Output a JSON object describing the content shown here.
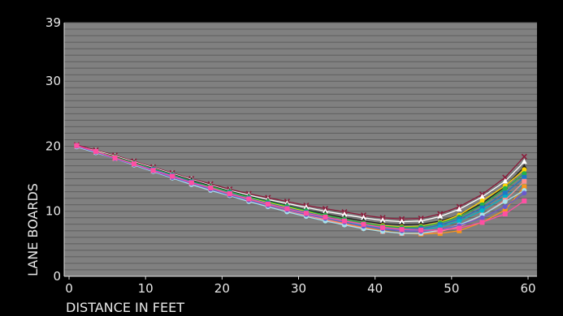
{
  "chart_data": {
    "type": "line",
    "title": "",
    "xlabel": "DISTANCE IN FEET",
    "ylabel": "LANE BOARDS",
    "xlim": [
      0,
      60
    ],
    "ylim": [
      0,
      39
    ],
    "xticks": [
      "0",
      "10",
      "20",
      "30",
      "40",
      "50",
      "60"
    ],
    "yticks": [
      "0",
      "10",
      "20",
      "30",
      "39"
    ],
    "grid": "horizontal, one line per lane board",
    "legend": "none",
    "x": [
      1,
      3.5,
      6,
      8.5,
      11,
      13.5,
      16,
      18.5,
      21,
      23.5,
      26,
      28.5,
      31,
      33.5,
      36,
      38.5,
      41,
      43.5,
      46,
      48.5,
      51,
      54,
      57,
      59.5
    ],
    "series": [
      {
        "color": "#8b1a3a",
        "marker": "x",
        "values": [
          20.2,
          19.4,
          18.6,
          17.7,
          16.8,
          15.9,
          15.0,
          14.2,
          13.4,
          12.7,
          12.1,
          11.5,
          10.9,
          10.4,
          9.9,
          9.4,
          9.0,
          8.8,
          8.9,
          9.6,
          10.7,
          12.6,
          15.2,
          18.4
        ]
      },
      {
        "color": "#ffffff",
        "marker": "triangle",
        "values": [
          20.0,
          19.3,
          18.5,
          17.6,
          16.7,
          15.8,
          14.9,
          14.0,
          13.2,
          12.5,
          11.8,
          11.2,
          10.6,
          10.0,
          9.5,
          9.0,
          8.6,
          8.4,
          8.5,
          9.2,
          10.3,
          12.2,
          14.6,
          17.6
        ]
      },
      {
        "color": "#1f1f1f",
        "marker": "triangle",
        "values": [
          20.0,
          19.2,
          18.4,
          17.5,
          16.6,
          15.7,
          14.8,
          13.9,
          13.1,
          12.3,
          11.6,
          10.9,
          10.2,
          9.6,
          9.0,
          8.5,
          8.1,
          7.9,
          8.0,
          8.5,
          9.4,
          11.2,
          13.8,
          16.8
        ]
      },
      {
        "color": "#ffd400",
        "marker": "circle",
        "values": [
          20.0,
          19.2,
          18.3,
          17.4,
          16.5,
          15.6,
          14.6,
          13.7,
          12.9,
          12.1,
          11.4,
          10.7,
          10.0,
          9.4,
          8.8,
          8.2,
          7.8,
          7.6,
          7.7,
          8.3,
          9.4,
          11.6,
          13.9,
          16.4
        ]
      },
      {
        "color": "#22b14c",
        "marker": "circle",
        "values": [
          20.0,
          19.2,
          18.3,
          17.4,
          16.5,
          15.6,
          14.6,
          13.8,
          13.0,
          12.2,
          11.5,
          10.8,
          10.1,
          9.4,
          8.8,
          8.2,
          7.7,
          7.5,
          7.6,
          8.2,
          9.1,
          11.0,
          13.5,
          15.8
        ]
      },
      {
        "color": "#1e78c8",
        "marker": "square",
        "values": [
          20.0,
          19.1,
          18.2,
          17.3,
          16.4,
          15.5,
          14.5,
          13.6,
          12.8,
          12.0,
          11.2,
          10.5,
          9.8,
          9.1,
          8.5,
          7.9,
          7.4,
          7.2,
          7.3,
          7.9,
          8.8,
          10.5,
          12.8,
          15.2
        ]
      },
      {
        "color": "#00b4c8",
        "marker": "circle",
        "values": [
          20.0,
          19.1,
          18.2,
          17.3,
          16.3,
          15.4,
          14.4,
          13.5,
          12.7,
          11.9,
          11.1,
          10.4,
          9.7,
          9.0,
          8.4,
          7.8,
          7.3,
          7.0,
          7.1,
          7.6,
          8.5,
          10.1,
          12.2,
          14.2
        ]
      },
      {
        "color": "#f7941d",
        "marker": "square",
        "values": [
          20.0,
          19.1,
          18.2,
          17.2,
          16.2,
          15.3,
          14.3,
          13.4,
          12.6,
          11.8,
          11.0,
          10.2,
          9.5,
          8.8,
          8.1,
          7.5,
          7.0,
          6.6,
          6.5,
          6.6,
          7.0,
          8.3,
          10.2,
          13.8
        ]
      },
      {
        "color": "#ff8c8c",
        "marker": "square",
        "values": [
          20.0,
          19.1,
          18.1,
          17.2,
          16.2,
          15.2,
          14.3,
          13.4,
          12.5,
          11.7,
          10.9,
          10.1,
          9.4,
          8.7,
          8.0,
          7.4,
          6.9,
          6.6,
          6.6,
          6.9,
          7.6,
          9.4,
          11.7,
          14.6
        ]
      },
      {
        "color": "#a6e3ec",
        "marker": "circle",
        "values": [
          19.9,
          19.0,
          18.1,
          17.1,
          16.1,
          15.1,
          14.1,
          13.2,
          12.4,
          11.5,
          10.7,
          9.9,
          9.2,
          8.5,
          7.9,
          7.3,
          6.9,
          6.6,
          6.6,
          7.1,
          7.9,
          9.4,
          11.5,
          13.2
        ]
      },
      {
        "color": "#6a5acd",
        "marker": "circle",
        "values": [
          20.0,
          19.1,
          18.1,
          17.2,
          16.2,
          15.2,
          14.3,
          13.4,
          12.5,
          11.7,
          10.9,
          10.2,
          9.5,
          8.9,
          8.3,
          7.7,
          7.3,
          7.0,
          6.9,
          7.2,
          7.8,
          9.0,
          10.7,
          12.8
        ]
      },
      {
        "color": "#ff4fa3",
        "marker": "square",
        "values": [
          20.1,
          19.2,
          18.2,
          17.3,
          16.3,
          15.4,
          14.4,
          13.6,
          12.7,
          11.9,
          11.1,
          10.4,
          9.7,
          9.1,
          8.5,
          8.0,
          7.5,
          7.2,
          7.1,
          7.1,
          7.4,
          8.3,
          9.6,
          11.6
        ]
      }
    ]
  }
}
